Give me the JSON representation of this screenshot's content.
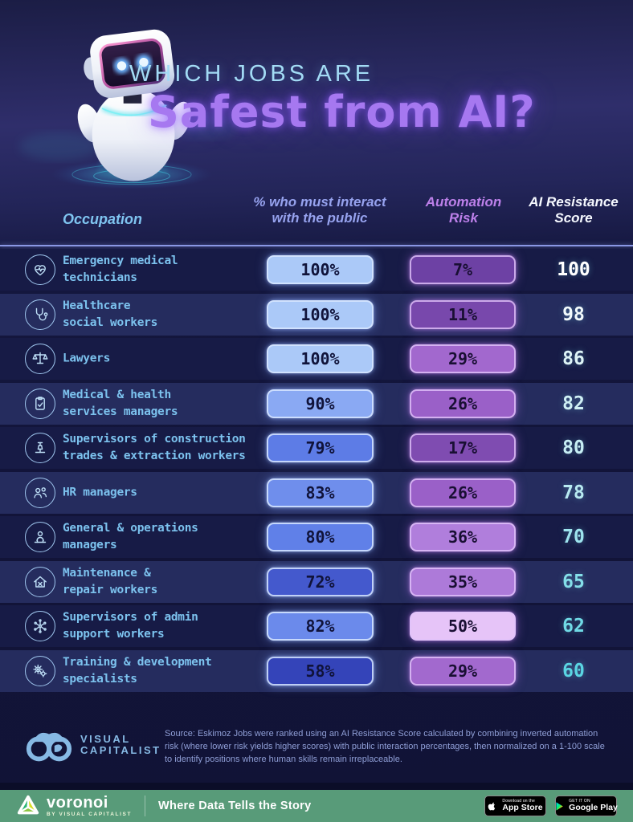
{
  "header": {
    "title_line1": "WHICH JOBS ARE",
    "title_line2": "Safest from AI?"
  },
  "columns": {
    "occupation": "Occupation",
    "public_line1": "% who must interact",
    "public_line2": "with the public",
    "risk_line1": "Automation",
    "risk_line2": "Risk",
    "score_line1": "AI Resistance",
    "score_line2": "Score"
  },
  "rows": [
    {
      "icon": "heart-pulse",
      "occupation_lines": [
        "Emergency medical",
        "technicians"
      ],
      "public_pct": "100%",
      "risk_pct": "7%",
      "score": "100",
      "public_color": "#abc9f8",
      "risk_color": "#6d41a4",
      "score_color": "#ffffff"
    },
    {
      "icon": "stethoscope",
      "occupation_lines": [
        "Healthcare",
        "social workers"
      ],
      "public_pct": "100%",
      "risk_pct": "11%",
      "score": "98",
      "public_color": "#abc9f8",
      "risk_color": "#7848ac",
      "score_color": "#f2fafc"
    },
    {
      "icon": "scales",
      "occupation_lines": [
        "Lawyers"
      ],
      "public_pct": "100%",
      "risk_pct": "29%",
      "score": "86",
      "public_color": "#abc9f8",
      "risk_color": "#a268ce",
      "score_color": "#def4f7"
    },
    {
      "icon": "clipboard",
      "occupation_lines": [
        "Medical & health",
        "services managers"
      ],
      "public_pct": "90%",
      "risk_pct": "26%",
      "score": "82",
      "public_color": "#8aa9f3",
      "risk_color": "#9a60c8",
      "score_color": "#d0f0f5"
    },
    {
      "icon": "construction",
      "occupation_lines": [
        "Supervisors of construction",
        "trades & extraction workers"
      ],
      "public_pct": "79%",
      "risk_pct": "17%",
      "score": "80",
      "public_color": "#5d7ce6",
      "risk_color": "#7f4cb1",
      "score_color": "#c7eef4"
    },
    {
      "icon": "hr-people",
      "occupation_lines": [
        "HR managers"
      ],
      "public_pct": "83%",
      "risk_pct": "26%",
      "score": "78",
      "public_color": "#6f8eec",
      "risk_color": "#9a60c8",
      "score_color": "#b8eaf1"
    },
    {
      "icon": "operations-manager",
      "occupation_lines": [
        "General & operations",
        "managers"
      ],
      "public_pct": "80%",
      "risk_pct": "36%",
      "score": "70",
      "public_color": "#6080e8",
      "risk_color": "#b07edc",
      "score_color": "#9ee4ee"
    },
    {
      "icon": "home-repair",
      "occupation_lines": [
        "Maintenance &",
        "repair workers"
      ],
      "public_pct": "72%",
      "risk_pct": "35%",
      "score": "65",
      "public_color": "#4459cd",
      "risk_color": "#ad7ad9",
      "score_color": "#84dfe9"
    },
    {
      "icon": "admin-network",
      "occupation_lines": [
        "Supervisors of admin",
        "support workers"
      ],
      "public_pct": "82%",
      "risk_pct": "50%",
      "score": "62",
      "public_color": "#6b8aeb",
      "risk_color": "#e6c4f8",
      "score_color": "#70dae6"
    },
    {
      "icon": "gears",
      "occupation_lines": [
        "Training & development",
        "specialists"
      ],
      "public_pct": "58%",
      "risk_pct": "29%",
      "score": "60",
      "public_color": "#3444b9",
      "risk_color": "#a269ce",
      "score_color": "#5ad5e3"
    }
  ],
  "footer": {
    "logo_line1": "VISUAL",
    "logo_line2": "CAPITALIST",
    "source_text": "Source: Eskimoz Jobs were ranked using an AI Resistance Score calculated by combining inverted automation risk (where lower risk yields higher scores) with public interaction percentages, then normalized on a 1-100 scale to identify positions where human skills remain irreplaceable."
  },
  "appbar": {
    "brand": "voronoi",
    "brand_sub": "BY VISUAL CAPITALIST",
    "tagline": "Where Data Tells the Story",
    "appstore_line1": "Download on the",
    "appstore_line2": "App Store",
    "gplay_line1": "GET IT ON",
    "gplay_line2": "Google Play",
    "bar_color": "#589b79"
  },
  "chart_data": {
    "type": "table",
    "title": "Which Jobs are Safest from AI?",
    "columns": [
      "Occupation",
      "% who must interact with the public",
      "Automation Risk",
      "AI Resistance Score"
    ],
    "rows": [
      {
        "occupation": "Emergency medical technicians",
        "public_interaction_pct": 100,
        "automation_risk_pct": 7,
        "ai_resistance_score": 100
      },
      {
        "occupation": "Healthcare social workers",
        "public_interaction_pct": 100,
        "automation_risk_pct": 11,
        "ai_resistance_score": 98
      },
      {
        "occupation": "Lawyers",
        "public_interaction_pct": 100,
        "automation_risk_pct": 29,
        "ai_resistance_score": 86
      },
      {
        "occupation": "Medical & health services managers",
        "public_interaction_pct": 90,
        "automation_risk_pct": 26,
        "ai_resistance_score": 82
      },
      {
        "occupation": "Supervisors of construction trades & extraction workers",
        "public_interaction_pct": 79,
        "automation_risk_pct": 17,
        "ai_resistance_score": 80
      },
      {
        "occupation": "HR managers",
        "public_interaction_pct": 83,
        "automation_risk_pct": 26,
        "ai_resistance_score": 78
      },
      {
        "occupation": "General & operations managers",
        "public_interaction_pct": 80,
        "automation_risk_pct": 36,
        "ai_resistance_score": 70
      },
      {
        "occupation": "Maintenance & repair workers",
        "public_interaction_pct": 72,
        "automation_risk_pct": 35,
        "ai_resistance_score": 65
      },
      {
        "occupation": "Supervisors of admin support workers",
        "public_interaction_pct": 82,
        "automation_risk_pct": 50,
        "ai_resistance_score": 62
      },
      {
        "occupation": "Training & development specialists",
        "public_interaction_pct": 58,
        "automation_risk_pct": 29,
        "ai_resistance_score": 60
      }
    ],
    "value_encoding": {
      "public_interaction_pill": "lighter blue = higher %",
      "automation_risk_pill": "lighter purple = higher %",
      "score_text": "white (high) to cyan (low)"
    },
    "source": "Eskimoz"
  }
}
